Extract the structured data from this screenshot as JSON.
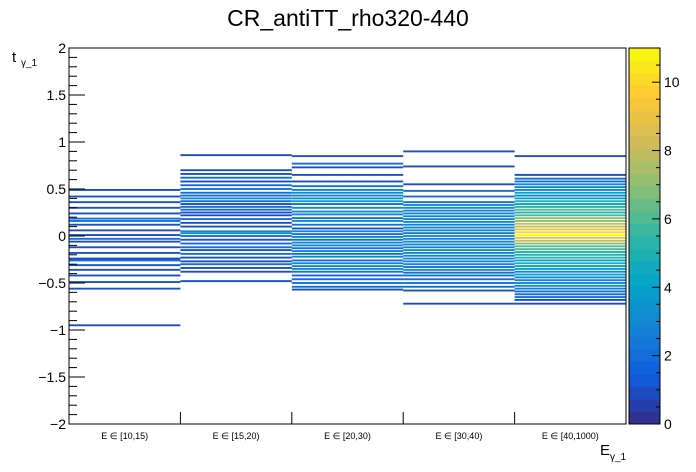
{
  "chart_data": {
    "type": "heatmap",
    "title": "CR_antiTT_rho320-440",
    "xlabel": "E",
    "xlabel_sub": "γ_1",
    "ylabel": "t",
    "ylabel_sub": "γ_1",
    "categories": [
      "E ∈ [10,15)",
      "E ∈ [15,20)",
      "E ∈ [20,30)",
      "E ∈ [30,40)",
      "E ∈ [40,1000)"
    ],
    "ylim": [
      -2,
      2
    ],
    "yticks": [
      -2,
      -1.5,
      -1,
      -0.5,
      0,
      0.5,
      1,
      1.5,
      2
    ],
    "ytick_labels": [
      "−2",
      "−1.5",
      "−1",
      "−0.5",
      "0",
      "0.5",
      "1",
      "1.5",
      "2"
    ],
    "zlim": [
      0,
      11
    ],
    "colorbar_ticks": [
      0,
      2,
      4,
      6,
      8,
      10
    ],
    "colorbar_tick_labels": [
      "0",
      "2",
      "4",
      "6",
      "8",
      "10"
    ],
    "colormap": [
      "#352a87",
      "#0f5cdd",
      "#1481d6",
      "#06a4ca",
      "#2eb7a4",
      "#87bf77",
      "#d1bb59",
      "#fec832",
      "#f9fb0e"
    ],
    "columns": [
      {
        "cells": [
          [
            0.49,
            1
          ],
          [
            0.42,
            1
          ],
          [
            0.36,
            1
          ],
          [
            0.3,
            1
          ],
          [
            0.24,
            1
          ],
          [
            0.185,
            2
          ],
          [
            0.16,
            2
          ],
          [
            0.12,
            1
          ],
          [
            0.06,
            1
          ],
          [
            0.01,
            1
          ],
          [
            -0.03,
            2
          ],
          [
            -0.06,
            1
          ],
          [
            -0.12,
            1
          ],
          [
            -0.18,
            1
          ],
          [
            -0.24,
            1
          ],
          [
            -0.26,
            2
          ],
          [
            -0.31,
            1
          ],
          [
            -0.36,
            1
          ],
          [
            -0.42,
            1
          ],
          [
            -0.49,
            1
          ],
          [
            -0.56,
            1
          ],
          [
            -0.95,
            1
          ]
        ]
      },
      {
        "cells": [
          [
            0.86,
            1
          ],
          [
            0.7,
            1
          ],
          [
            0.66,
            1
          ],
          [
            0.62,
            2
          ],
          [
            0.58,
            1
          ],
          [
            0.54,
            2
          ],
          [
            0.5,
            2
          ],
          [
            0.46,
            2
          ],
          [
            0.43,
            2
          ],
          [
            0.4,
            3
          ],
          [
            0.37,
            2
          ],
          [
            0.34,
            1
          ],
          [
            0.31,
            2
          ],
          [
            0.28,
            2
          ],
          [
            0.25,
            1
          ],
          [
            0.22,
            1
          ],
          [
            0.18,
            2
          ],
          [
            0.14,
            1
          ],
          [
            0.1,
            1
          ],
          [
            0.05,
            3
          ],
          [
            0.03,
            3
          ],
          [
            0.0,
            2
          ],
          [
            -0.04,
            1
          ],
          [
            -0.08,
            2
          ],
          [
            -0.12,
            2
          ],
          [
            -0.15,
            1
          ],
          [
            -0.19,
            2
          ],
          [
            -0.23,
            1
          ],
          [
            -0.27,
            1
          ],
          [
            -0.3,
            2
          ],
          [
            -0.34,
            1
          ],
          [
            -0.38,
            1
          ],
          [
            -0.48,
            1
          ]
        ]
      },
      {
        "cells": [
          [
            0.85,
            1
          ],
          [
            0.77,
            2
          ],
          [
            0.73,
            1
          ],
          [
            0.65,
            1
          ],
          [
            0.58,
            1
          ],
          [
            0.53,
            2
          ],
          [
            0.49,
            3
          ],
          [
            0.46,
            3
          ],
          [
            0.43,
            3
          ],
          [
            0.4,
            3
          ],
          [
            0.37,
            4
          ],
          [
            0.34,
            2
          ],
          [
            0.3,
            3
          ],
          [
            0.26,
            3
          ],
          [
            0.23,
            3
          ],
          [
            0.19,
            2
          ],
          [
            0.16,
            3
          ],
          [
            0.12,
            2
          ],
          [
            0.08,
            1
          ],
          [
            0.05,
            3
          ],
          [
            0.02,
            2
          ],
          [
            -0.01,
            3
          ],
          [
            -0.04,
            2
          ],
          [
            -0.07,
            3
          ],
          [
            -0.1,
            3
          ],
          [
            -0.13,
            2
          ],
          [
            -0.16,
            3
          ],
          [
            -0.19,
            2
          ],
          [
            -0.22,
            3
          ],
          [
            -0.26,
            2
          ],
          [
            -0.29,
            3
          ],
          [
            -0.32,
            3
          ],
          [
            -0.35,
            3
          ],
          [
            -0.38,
            2
          ],
          [
            -0.42,
            2
          ],
          [
            -0.46,
            2
          ],
          [
            -0.5,
            2
          ],
          [
            -0.54,
            2
          ],
          [
            -0.57,
            1
          ]
        ]
      },
      {
        "cells": [
          [
            0.9,
            1
          ],
          [
            0.74,
            1
          ],
          [
            0.55,
            1
          ],
          [
            0.48,
            2
          ],
          [
            0.42,
            2
          ],
          [
            0.36,
            2
          ],
          [
            0.33,
            3
          ],
          [
            0.3,
            3
          ],
          [
            0.27,
            3
          ],
          [
            0.24,
            3
          ],
          [
            0.21,
            3
          ],
          [
            0.18,
            3
          ],
          [
            0.15,
            3
          ],
          [
            0.12,
            3
          ],
          [
            0.09,
            3
          ],
          [
            0.06,
            3
          ],
          [
            0.03,
            2
          ],
          [
            0.0,
            3
          ],
          [
            -0.03,
            3
          ],
          [
            -0.06,
            3
          ],
          [
            -0.09,
            3
          ],
          [
            -0.12,
            3
          ],
          [
            -0.15,
            3
          ],
          [
            -0.18,
            3
          ],
          [
            -0.21,
            3
          ],
          [
            -0.24,
            3
          ],
          [
            -0.27,
            3
          ],
          [
            -0.3,
            3
          ],
          [
            -0.33,
            2
          ],
          [
            -0.36,
            3
          ],
          [
            -0.39,
            2
          ],
          [
            -0.42,
            2
          ],
          [
            -0.46,
            2
          ],
          [
            -0.5,
            2
          ],
          [
            -0.54,
            2
          ],
          [
            -0.58,
            1
          ],
          [
            -0.72,
            1
          ]
        ]
      },
      {
        "cells": [
          [
            0.85,
            1
          ],
          [
            0.65,
            1
          ],
          [
            0.61,
            2
          ],
          [
            0.58,
            2
          ],
          [
            0.55,
            3
          ],
          [
            0.52,
            3
          ],
          [
            0.49,
            3
          ],
          [
            0.46,
            4
          ],
          [
            0.43,
            3
          ],
          [
            0.4,
            4
          ],
          [
            0.37,
            5
          ],
          [
            0.34,
            4
          ],
          [
            0.31,
            5
          ],
          [
            0.28,
            6
          ],
          [
            0.25,
            5
          ],
          [
            0.22,
            6
          ],
          [
            0.19,
            7
          ],
          [
            0.16,
            7
          ],
          [
            0.13,
            8
          ],
          [
            0.1,
            8
          ],
          [
            0.07,
            9
          ],
          [
            0.04,
            10
          ],
          [
            0.01,
            11
          ],
          [
            -0.02,
            9
          ],
          [
            -0.05,
            8
          ],
          [
            -0.08,
            7
          ],
          [
            -0.11,
            6
          ],
          [
            -0.14,
            6
          ],
          [
            -0.17,
            5
          ],
          [
            -0.2,
            5
          ],
          [
            -0.23,
            5
          ],
          [
            -0.26,
            4
          ],
          [
            -0.29,
            5
          ],
          [
            -0.32,
            4
          ],
          [
            -0.35,
            4
          ],
          [
            -0.38,
            3
          ],
          [
            -0.41,
            4
          ],
          [
            -0.44,
            3
          ],
          [
            -0.47,
            3
          ],
          [
            -0.5,
            3
          ],
          [
            -0.53,
            3
          ],
          [
            -0.56,
            3
          ],
          [
            -0.59,
            2
          ],
          [
            -0.62,
            2
          ],
          [
            -0.65,
            2
          ],
          [
            -0.68,
            1
          ],
          [
            -0.72,
            1
          ]
        ]
      }
    ]
  }
}
